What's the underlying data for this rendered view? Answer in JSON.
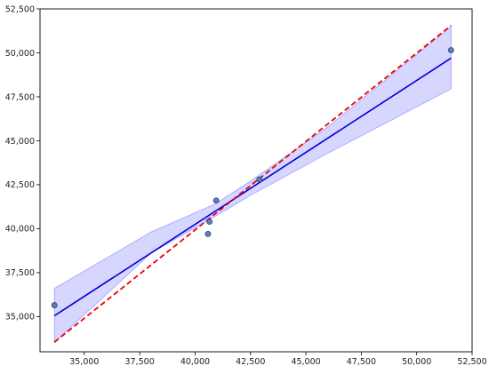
{
  "chart_data": {
    "type": "scatter",
    "title": "",
    "xlabel": "",
    "ylabel": "",
    "xlim": [
      33000,
      52500
    ],
    "ylim": [
      33000,
      52500
    ],
    "xticks": [
      35000,
      37500,
      40000,
      42500,
      45000,
      47500,
      50000,
      52500
    ],
    "yticks": [
      35000,
      37500,
      40000,
      42500,
      45000,
      47500,
      50000,
      52500
    ],
    "xtick_labels": [
      "35,000",
      "37,500",
      "40,000",
      "42,500",
      "45,000",
      "47,500",
      "50,000",
      "52,500"
    ],
    "ytick_labels": [
      "35,000",
      "37,500",
      "40,000",
      "42,500",
      "45,000",
      "47,500",
      "50,000",
      "52,500"
    ],
    "grid": false,
    "points": [
      {
        "x": 33650,
        "y": 35650
      },
      {
        "x": 40580,
        "y": 39700
      },
      {
        "x": 40650,
        "y": 40400
      },
      {
        "x": 40950,
        "y": 41600
      },
      {
        "x": 42900,
        "y": 42800
      },
      {
        "x": 51550,
        "y": 50150
      }
    ],
    "fit_line": {
      "x": [
        33650,
        51550
      ],
      "y": [
        35050,
        49700
      ]
    },
    "confidence_band": {
      "x": [
        33650,
        38000,
        40900,
        42500,
        46000,
        51550
      ],
      "lower": [
        33550,
        38600,
        40700,
        41900,
        44300,
        47950
      ],
      "upper": [
        36600,
        39800,
        41400,
        42700,
        45800,
        51500
      ]
    },
    "identity_line": {
      "x": [
        33650,
        51550
      ],
      "y": [
        33550,
        51550
      ]
    },
    "colors": {
      "points_fill": "#5a7fc0",
      "points_edge": "#2a3f6a",
      "fit_line": "#0000dd",
      "band_fill": "#d6d6ff",
      "band_edge": "#a0a0ff",
      "identity_line": "#ee0000",
      "axes": "#000000"
    }
  }
}
